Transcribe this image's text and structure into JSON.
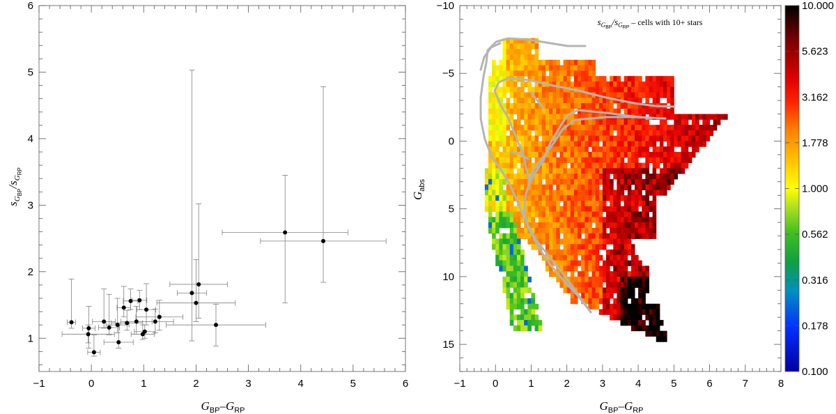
{
  "chart_data": [
    {
      "type": "scatter",
      "title": "",
      "xlabel": "G_BP–G_RP",
      "ylabel": "s_G_BP/s_G_RP",
      "xlim": [
        -1,
        6
      ],
      "ylim": [
        0.5,
        6
      ],
      "xticks": [
        "−1",
        "0",
        "1",
        "2",
        "3",
        "4",
        "5",
        "6"
      ],
      "yticks": [
        "1",
        "2",
        "3",
        "4",
        "5",
        "6"
      ],
      "grid": false,
      "points": [
        {
          "x": -0.38,
          "y": 1.24,
          "xerr": 0.08,
          "ylo": 1.15,
          "yhi": 1.89
        },
        {
          "x": -0.06,
          "y": 1.06,
          "xerr": 0.5,
          "ylo": 0.93,
          "yhi": 1.2
        },
        {
          "x": -0.05,
          "y": 1.15,
          "xerr": 0.12,
          "ylo": 0.85,
          "yhi": 1.48
        },
        {
          "x": 0.05,
          "y": 0.79,
          "xerr": 0.12,
          "ylo": 0.73,
          "yhi": 1.05
        },
        {
          "x": 0.24,
          "y": 1.25,
          "xerr": 0.22,
          "ylo": 1.15,
          "yhi": 1.74
        },
        {
          "x": 0.34,
          "y": 1.16,
          "xerr": 0.2,
          "ylo": 1.05,
          "yhi": 1.66
        },
        {
          "x": 0.5,
          "y": 1.2,
          "xerr": 0.22,
          "ylo": 1.08,
          "yhi": 1.6
        },
        {
          "x": 0.52,
          "y": 0.94,
          "xerr": 0.28,
          "ylo": 0.85,
          "yhi": 1.2
        },
        {
          "x": 0.62,
          "y": 1.46,
          "xerr": 0.13,
          "ylo": 1.32,
          "yhi": 1.78
        },
        {
          "x": 0.68,
          "y": 1.23,
          "xerr": 0.3,
          "ylo": 1.12,
          "yhi": 1.42
        },
        {
          "x": 0.75,
          "y": 1.56,
          "xerr": 0.14,
          "ylo": 1.43,
          "yhi": 1.74
        },
        {
          "x": 0.86,
          "y": 1.25,
          "xerr": 0.3,
          "ylo": 1.06,
          "yhi": 1.48
        },
        {
          "x": 0.92,
          "y": 1.57,
          "xerr": 0.14,
          "ylo": 1.43,
          "yhi": 1.72
        },
        {
          "x": 0.98,
          "y": 1.06,
          "xerr": 0.22,
          "ylo": 0.98,
          "yhi": 1.2
        },
        {
          "x": 1.02,
          "y": 1.1,
          "xerr": 0.2,
          "ylo": 1.0,
          "yhi": 1.2
        },
        {
          "x": 1.05,
          "y": 1.43,
          "xerr": 0.18,
          "ylo": 1.2,
          "yhi": 1.82
        },
        {
          "x": 1.22,
          "y": 1.25,
          "xerr": 0.35,
          "ylo": 1.08,
          "yhi": 1.44
        },
        {
          "x": 1.3,
          "y": 1.32,
          "xerr": 0.45,
          "ylo": 1.12,
          "yhi": 1.57
        },
        {
          "x": 1.92,
          "y": 1.68,
          "xerr": 0.28,
          "ylo": 0.96,
          "yhi": 5.03
        },
        {
          "x": 2.0,
          "y": 1.53,
          "xerr": 0.75,
          "ylo": 1.25,
          "yhi": 2.18
        },
        {
          "x": 2.05,
          "y": 1.81,
          "xerr": 0.55,
          "ylo": 1.3,
          "yhi": 3.02
        },
        {
          "x": 2.38,
          "y": 1.2,
          "xerr": 0.95,
          "ylo": 0.88,
          "yhi": 1.51
        },
        {
          "x": 3.7,
          "y": 2.59,
          "xerr": 1.2,
          "ylo": 1.53,
          "yhi": 3.45
        },
        {
          "x": 4.43,
          "y": 2.46,
          "xerr": 1.2,
          "ylo": 1.84,
          "yhi": 4.78
        }
      ]
    },
    {
      "type": "heatmap",
      "title": "s_G_BP/s_G_RP – cells with 10+ stars",
      "xlabel": "G_BP–G_RP",
      "ylabel": "G_abs",
      "xlim": [
        -1,
        8
      ],
      "ylim": [
        17,
        -10
      ],
      "xticks": [
        "−1",
        "0",
        "1",
        "2",
        "3",
        "4",
        "5",
        "6",
        "7",
        "8"
      ],
      "yticks": [
        "−10",
        "−5",
        "0",
        "5",
        "10",
        "15"
      ],
      "color_scale": "log",
      "colorbar_range": [
        0.1,
        10
      ],
      "colorbar_ticks": [
        "10.000",
        "5.623",
        "3.162",
        "1.778",
        "1.000",
        "0.562",
        "0.316",
        "0.178",
        "0.100"
      ],
      "track_color": "#b4b4b4"
    }
  ],
  "left_panel": {
    "xlabel_main": "G",
    "xlabel_sub1": "BP",
    "xlabel_mid": "–G",
    "xlabel_sub2": "RP",
    "ylabel_s1": "s",
    "ylabel_g1": "G",
    "ylabel_sub1": "BP",
    "ylabel_slash": "/",
    "ylabel_s2": "s",
    "ylabel_g2": "G",
    "ylabel_sub2": "RP"
  },
  "right_panel": {
    "title_s1": "s",
    "title_g1": "G",
    "title_sub1": "BP",
    "title_slash": "/",
    "title_s2": "s",
    "title_g2": "G",
    "title_sub2": "RP",
    "title_rest": " – cells with 10+ stars",
    "xlabel_main": "G",
    "xlabel_sub1": "BP",
    "xlabel_mid": "–G",
    "xlabel_sub2": "RP",
    "ylabel_main": "G",
    "ylabel_sub": "abs"
  }
}
